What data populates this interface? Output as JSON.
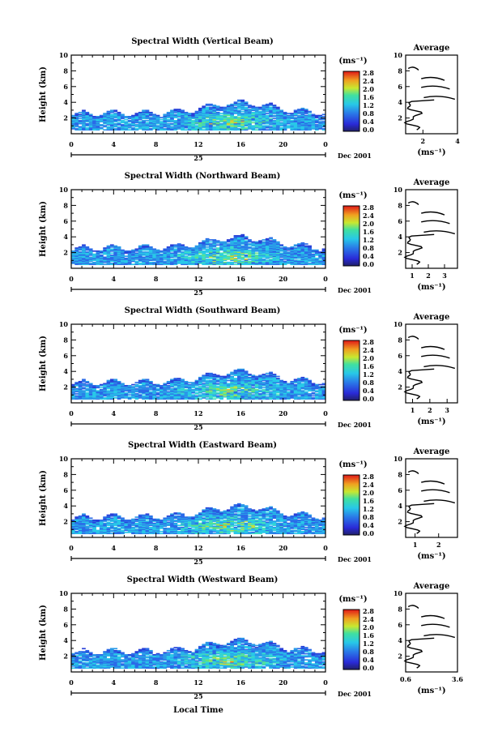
{
  "panels": [
    {
      "title": "Spectral Width (Vertical Beam)",
      "avg": {
        "xticks": [
          "2",
          "4"
        ],
        "xvals": [
          2,
          4
        ],
        "xlim": [
          1,
          4
        ]
      }
    },
    {
      "title": "Spectral Width (Northward Beam)",
      "avg": {
        "xticks": [
          "1",
          "2",
          "3"
        ],
        "xvals": [
          1,
          2,
          3
        ],
        "xlim": [
          0.6,
          3.8
        ]
      }
    },
    {
      "title": "Spectral Width (Southward Beam)",
      "avg": {
        "xticks": [
          "1",
          "2",
          "3"
        ],
        "xvals": [
          1,
          2,
          3
        ],
        "xlim": [
          0.6,
          3.6
        ]
      }
    },
    {
      "title": "Spectral Width (Eastward Beam)",
      "avg": {
        "xticks": [
          "1",
          "2"
        ],
        "xvals": [
          1,
          2
        ],
        "xlim": [
          0.6,
          2.8
        ]
      }
    },
    {
      "title": "Spectral Width (Westward Beam)",
      "avg": {
        "xticks": [
          "0.6",
          "3.6"
        ],
        "xvals": [
          0.6,
          3.6
        ],
        "xlim": [
          0.6,
          3.6
        ]
      }
    }
  ],
  "common": {
    "ylabel": "Height (km)",
    "yticks": [
      "2",
      "4",
      "6",
      "8",
      "10"
    ],
    "xticks": [
      "0",
      "4",
      "8",
      "12",
      "16",
      "20",
      "0"
    ],
    "day_label": "25",
    "date_label": "Dec 2001",
    "xlabel": "Local Time",
    "avg_title": "Average",
    "unit_label": "(ms⁻¹)",
    "colorbar_ticks": [
      "0.0",
      "0.4",
      "0.8",
      "1.2",
      "1.6",
      "2.0",
      "2.4",
      "2.8"
    ],
    "colors": {
      "low": "#1a1aa0",
      "mid": "#2ad0e0",
      "high": "#e02020"
    }
  },
  "chart_data": {
    "type": "heatmap",
    "title": "",
    "x_range_hours": [
      0,
      24
    ],
    "y_range_km": [
      0,
      10
    ],
    "colorbar_range": [
      0.0,
      2.8
    ],
    "series_names": [
      "Vertical Beam",
      "Northward Beam",
      "Southward Beam",
      "Eastward Beam",
      "Westward Beam"
    ]
  }
}
